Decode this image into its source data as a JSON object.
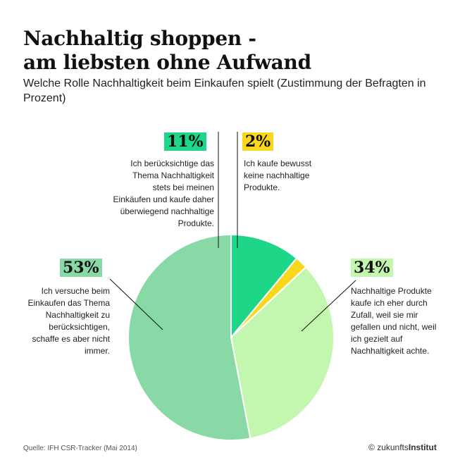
{
  "title_lines": [
    "Nachhaltig shoppen -",
    "am liebsten ohne Aufwand"
  ],
  "subtitle": "Welche Rolle Nachhaltigkeit beim Einkaufen spielt (Zustimmung der Befragten in Prozent)",
  "chart_data": {
    "type": "pie",
    "unit": "%",
    "slices": [
      {
        "label": "11%",
        "value": 11,
        "color": "#1ed688",
        "text": "Ich berücksichtige das Thema Nachhaltigkeit stets bei meinen Einkäufen und kaufe daher überwiegend nachhaltige Produkte."
      },
      {
        "label": "2%",
        "value": 2,
        "color": "#f9d71c",
        "text": "Ich kaufe bewusst keine nachhaltige Produkte."
      },
      {
        "label": "34%",
        "value": 34,
        "color": "#c3f6ae",
        "text": "Nachhaltige Produkte kaufe ich eher durch Zufall, weil sie mir gefallen und nicht, weil ich gezielt auf Nachhaltigkeit achte."
      },
      {
        "label": "53%",
        "value": 53,
        "color": "#88d9a6",
        "text": "Ich versuche beim Einkaufen das Thema Nachhaltigkeit zu berücksichtigen, schaffe es aber nicht immer."
      }
    ]
  },
  "source": "Quelle: IFH CSR-Tracker (Mai 2014)",
  "brand": {
    "prefix": "zukunfts",
    "bold": "Institut"
  }
}
